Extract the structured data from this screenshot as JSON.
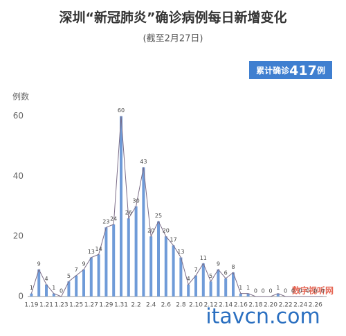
{
  "chart_data": {
    "type": "bar",
    "title": "深圳“新冠肺炎”确诊病例每日新增变化",
    "subtitle": "(截至2月27日)",
    "badge": {
      "prefix": "累计确诊",
      "number": "417",
      "suffix": "例"
    },
    "y_label": "例数",
    "categories": [
      "1.19",
      null,
      "1.21",
      null,
      "1.23",
      null,
      "1.25",
      null,
      "1.27",
      null,
      "1.29",
      null,
      "1.31",
      null,
      "2.2",
      null,
      "2.4",
      null,
      "2.6",
      null,
      "2.8",
      null,
      "2.10",
      null,
      "2.12",
      null,
      "2.14",
      null,
      "2.16",
      null,
      "2.18",
      null,
      "2.20",
      null,
      "2.22",
      null,
      "2.24",
      null,
      "2.26",
      null
    ],
    "values": [
      1,
      9,
      4,
      1,
      0,
      5,
      7,
      9,
      13,
      14,
      23,
      24,
      60,
      26,
      30,
      43,
      20,
      25,
      20,
      17,
      13,
      4,
      7,
      11,
      5,
      9,
      6,
      8,
      1,
      1,
      0,
      0,
      0,
      1,
      0,
      0,
      0,
      0,
      0,
      0
    ],
    "color": "#6f9bd8",
    "line_color": "#7a6b86",
    "ylim": [
      0,
      65
    ],
    "yticks": [
      0,
      20,
      40,
      60
    ],
    "grid": false,
    "watermarks": [
      "数字视听网",
      "itavcn.com"
    ]
  }
}
